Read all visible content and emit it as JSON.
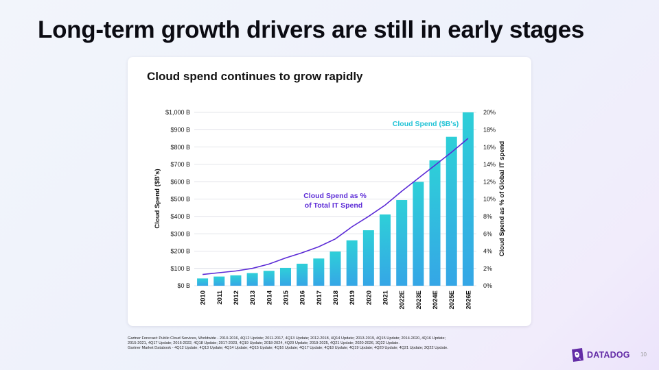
{
  "slide": {
    "title": "Long-term growth drivers are still in early stages",
    "page_number": "10",
    "brand": "DATADOG"
  },
  "footnote": {
    "line1": "Gartner Forecast: Public Cloud Services, Worldwide - 2010-2016, 4Q12 Update; 2011-2017, 4Q13 Update; 2012-2018, 4Q14 Update; 2013-2019, 4Q15 Update; 2014-2020, 4Q16 Update;",
    "line2": "2015-2021, 4Q17 Update; 2016-2022, 4Q18 Update; 2017-2023, 4Q19 Update; 2018-2024, 4Q20 Update; 2019-2025, 4Q21 Update; 2020-2026, 3Q22 Update.",
    "line3": "Gartner Market Databook - 4Q12 Update; 4Q13 Update; 4Q14 Update; 4Q15 Update; 4Q16 Update; 4Q17 Update; 4Q18 Update; 4Q19 Update; 4Q20 Update; 4Q21 Update; 3Q22 Update."
  },
  "colors": {
    "bar_top": "#2ecfd8",
    "bar_bottom": "#35a6e6",
    "line": "#5b2ad6",
    "bar_label": "#22c3d6",
    "line_label": "#5b2ad6",
    "brand": "#632ca6"
  },
  "chart_data": {
    "type": "bar",
    "title": "Cloud spend continues to grow rapidly",
    "categories": [
      "2010",
      "2011",
      "2012",
      "2013",
      "2014",
      "2015",
      "2016",
      "2017",
      "2018",
      "2019",
      "2020",
      "2021",
      "2022E",
      "2023E",
      "2024E",
      "2025E",
      "2026E"
    ],
    "ylabel": "Cloud Spend ($B's)",
    "y2label": "Cloud Spend as % of Global IT spend",
    "ylim": [
      0,
      1000
    ],
    "y2lim": [
      0,
      20
    ],
    "yticks": [
      "$0 B",
      "$100 B",
      "$200 B",
      "$300 B",
      "$400 B",
      "$500 B",
      "$600 B",
      "$700 B",
      "$800 B",
      "$900 B",
      "$1,000 B"
    ],
    "y2ticks": [
      "0%",
      "2%",
      "4%",
      "6%",
      "8%",
      "10%",
      "12%",
      "14%",
      "16%",
      "18%",
      "20%"
    ],
    "grid": true,
    "series": [
      {
        "name": "Cloud Spend ($B's)",
        "type": "bar",
        "axis": "left",
        "values": [
          42,
          53,
          60,
          73,
          86,
          103,
          127,
          157,
          197,
          262,
          320,
          411,
          494,
          599,
          723,
          859,
          1000
        ]
      },
      {
        "name": "Cloud Spend as % of Total IT Spend",
        "type": "line",
        "axis": "right",
        "values": [
          1.3,
          1.5,
          1.7,
          2.0,
          2.5,
          3.2,
          3.8,
          4.5,
          5.4,
          6.8,
          8.0,
          9.3,
          10.9,
          12.4,
          13.9,
          15.4,
          17.0
        ]
      }
    ],
    "annotations": {
      "bar_label": "Cloud Spend ($B's)",
      "line_label_1": "Cloud Spend as %",
      "line_label_2": "of Total IT Spend"
    }
  }
}
